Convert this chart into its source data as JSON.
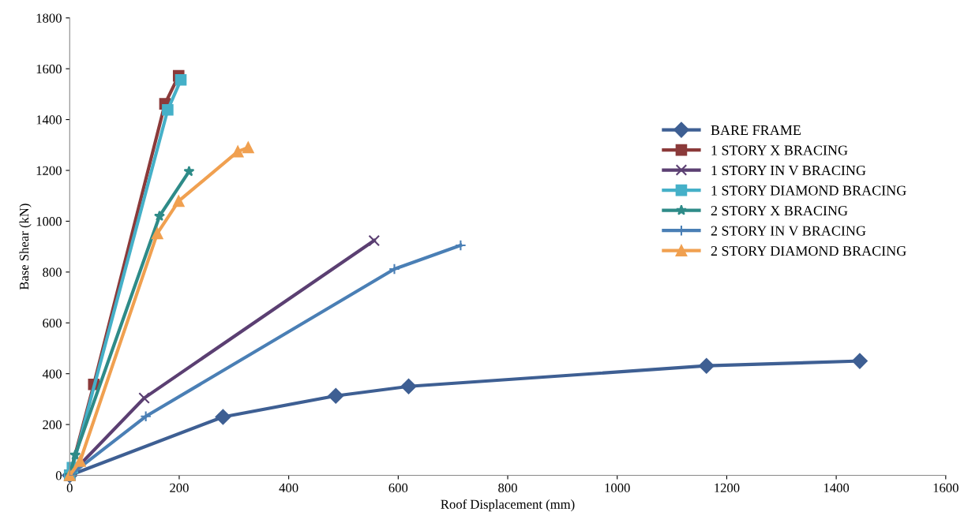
{
  "chart_data": {
    "type": "line",
    "xlabel": "Roof Displacement (mm)",
    "ylabel": "Base Shear (kN)",
    "xlim": [
      0,
      1600
    ],
    "xticks": [
      0,
      200,
      400,
      600,
      800,
      1000,
      1200,
      1400,
      1600
    ],
    "ylim": [
      0,
      1800
    ],
    "yticks": [
      0,
      200,
      400,
      600,
      800,
      1000,
      1200,
      1400,
      1600,
      1800
    ],
    "grid": false,
    "legend": "right",
    "series": [
      {
        "name": "BARE FRAME",
        "color": "#3e5f93",
        "marker": "diamond",
        "x": [
          0,
          280,
          486,
          619,
          1163,
          1443
        ],
        "values": [
          0,
          230,
          313,
          350,
          431,
          450
        ]
      },
      {
        "name": "1 STORY X BRACING",
        "color": "#8b3a3a",
        "marker": "square",
        "x": [
          0,
          44,
          174,
          199
        ],
        "values": [
          0,
          358,
          1462,
          1572
        ]
      },
      {
        "name": "1 STORY IN V BRACING",
        "color": "#5b3f72",
        "marker": "cross",
        "x": [
          0,
          136,
          556
        ],
        "values": [
          0,
          304,
          924
        ]
      },
      {
        "name": "1 STORY DIAMOND BRACING",
        "color": "#45b0c8",
        "marker": "square",
        "x": [
          0,
          5,
          179,
          203
        ],
        "values": [
          0,
          30,
          1438,
          1556
        ]
      },
      {
        "name": "2 STORY X BRACING",
        "color": "#2e8b88",
        "marker": "star",
        "x": [
          0,
          10,
          164,
          218
        ],
        "values": [
          0,
          80,
          1020,
          1196
        ]
      },
      {
        "name": "2 STORY IN V BRACING",
        "color": "#4a7fb5",
        "marker": "plus",
        "x": [
          0,
          139,
          593,
          714
        ],
        "values": [
          0,
          232,
          812,
          905
        ]
      },
      {
        "name": "2 STORY DIAMOND BRACING",
        "color": "#f0a050",
        "marker": "triangle",
        "x": [
          0,
          19,
          160,
          199,
          307,
          326
        ],
        "values": [
          0,
          56,
          952,
          1079,
          1274,
          1290
        ]
      }
    ]
  }
}
